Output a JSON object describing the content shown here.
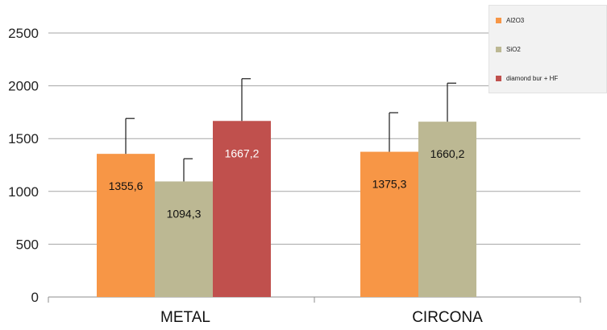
{
  "chart_data": {
    "type": "bar",
    "title": "",
    "xlabel": "",
    "ylabel": "",
    "categories": [
      "METAL",
      "CIRCONA"
    ],
    "ylim": [
      0,
      2500
    ],
    "yticks": [
      0,
      500,
      1000,
      1500,
      2000,
      2500
    ],
    "grid": true,
    "legend_position": "top-right",
    "series": [
      {
        "name": "Al2O3",
        "color": "#f79646",
        "values": [
          1355.6,
          1375.3
        ],
        "errors": [
          335,
          370
        ],
        "labels": [
          "1355,6",
          "1375,3"
        ]
      },
      {
        "name": "SiO2",
        "color": "#bcb893",
        "values": [
          1094.3,
          1660.2
        ],
        "errors": [
          215,
          365
        ],
        "labels": [
          "1094,3",
          "1660,2"
        ]
      },
      {
        "name": "diamond bur + HF",
        "color": "#c0504d",
        "values": [
          1667.2,
          null
        ],
        "errors": [
          400,
          null
        ],
        "labels": [
          "1667,2",
          null
        ]
      }
    ]
  }
}
